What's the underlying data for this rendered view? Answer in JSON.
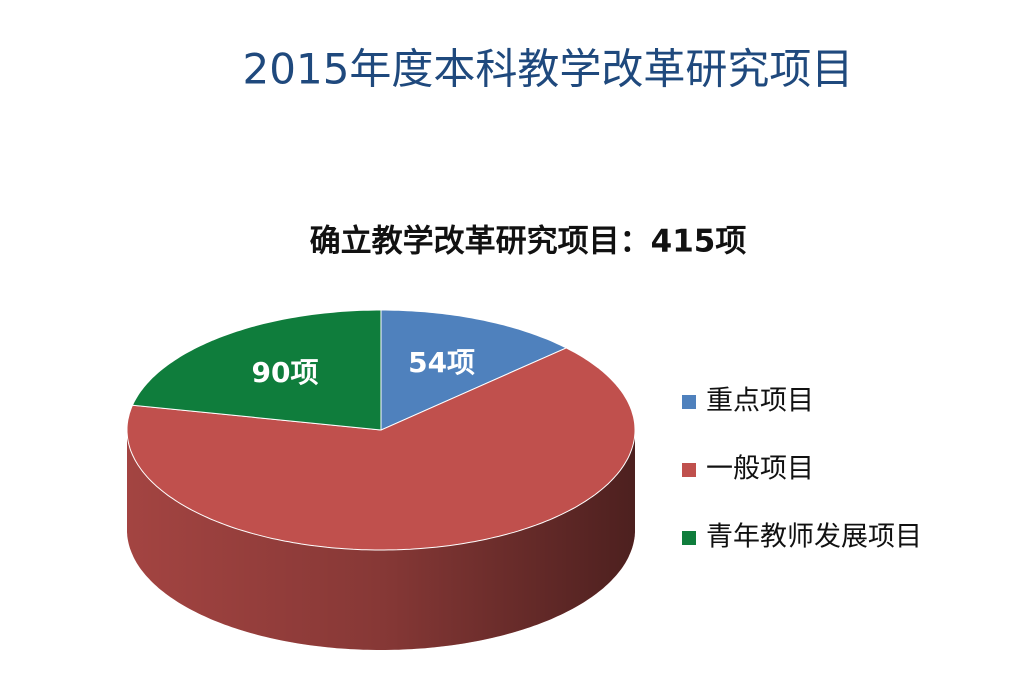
{
  "chart_data": {
    "type": "pie",
    "title": "2015年度本科教学改革研究项目",
    "subtitle": "确立教学改革研究项目：415项",
    "categories": [
      "重点项目",
      "一般项目",
      "青年教师发展项目"
    ],
    "values": [
      54,
      271,
      90
    ],
    "value_labels": [
      "54项",
      null,
      "90项"
    ],
    "colors": [
      "#4f81bd",
      "#c0504d",
      "#0f7d3c"
    ],
    "legend": "right"
  }
}
